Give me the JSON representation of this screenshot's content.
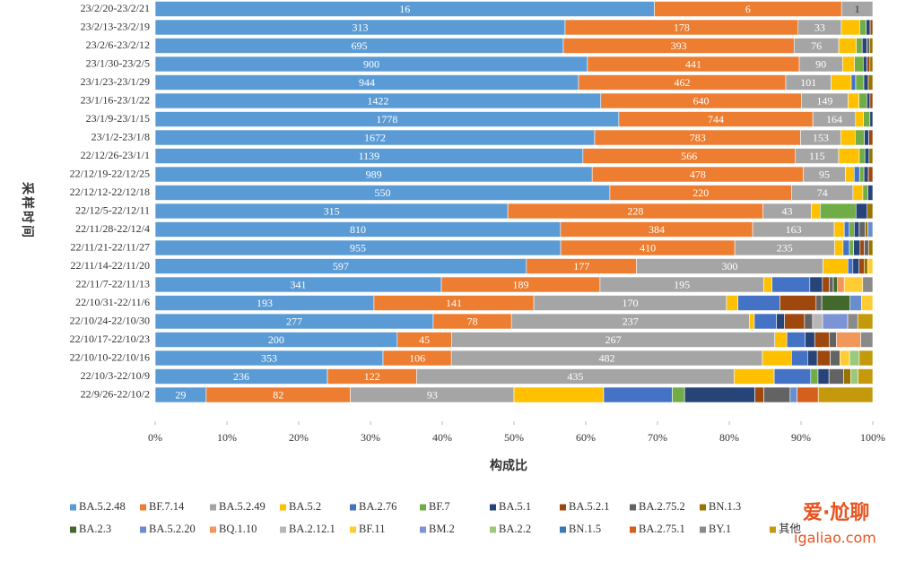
{
  "chart_data": {
    "type": "stacked_percent_barh",
    "xlabel": "构成比",
    "ylabel": "采样时间",
    "categories": [
      "23/2/20-23/2/21",
      "23/2/13-23/2/19",
      "23/2/6-23/2/12",
      "23/1/30-23/2/5",
      "23/1/23-23/1/29",
      "23/1/16-23/1/22",
      "23/1/9-23/1/15",
      "23/1/2-23/1/8",
      "22/12/26-23/1/1",
      "22/12/19-22/12/25",
      "22/12/12-22/12/18",
      "22/12/5-22/12/11",
      "22/11/28-22/12/4",
      "22/11/21-22/11/27",
      "22/11/14-22/11/20",
      "22/11/7-22/11/13",
      "22/10/31-22/11/6",
      "22/10/24-22/10/30",
      "22/10/17-22/10/23",
      "22/10/10-22/10/16",
      "22/10/3-22/10/9",
      "22/9/26-22/10/2"
    ],
    "xlim": [
      0,
      100
    ],
    "xticks": [
      {
        "value": 0,
        "label": "0%"
      },
      {
        "value": 10,
        "label": "10%"
      },
      {
        "value": 20,
        "label": "20%"
      },
      {
        "value": 30,
        "label": "30%"
      },
      {
        "value": 40,
        "label": "40%"
      },
      {
        "value": 50,
        "label": "50%"
      },
      {
        "value": 60,
        "label": "60%"
      },
      {
        "value": 70,
        "label": "70%"
      },
      {
        "value": 80,
        "label": "80%"
      },
      {
        "value": 90,
        "label": "90%"
      },
      {
        "value": 100,
        "label": "100%"
      }
    ],
    "watermark": [
      "爱·尬聊",
      "igaliao.com"
    ],
    "series": [
      {
        "name": "BA.5.2.48",
        "color": "#5b9bd5",
        "show_labels": true,
        "values": [
          16,
          313,
          695,
          900,
          944,
          1422,
          1778,
          1672,
          1139,
          989,
          550,
          315,
          810,
          955,
          597,
          341,
          193,
          277,
          200,
          353,
          236,
          29
        ]
      },
      {
        "name": "BF.7.14",
        "color": "#ed7d31",
        "show_labels": true,
        "values": [
          6,
          178,
          393,
          441,
          462,
          640,
          744,
          783,
          566,
          478,
          220,
          228,
          384,
          410,
          177,
          189,
          141,
          78,
          45,
          106,
          122,
          82
        ]
      },
      {
        "name": "BA.5.2.49",
        "color": "#a5a5a5",
        "show_labels": true,
        "values": [
          1,
          33,
          76,
          90,
          101,
          149,
          164,
          153,
          115,
          95,
          74,
          43,
          163,
          235,
          300,
          195,
          170,
          237,
          267,
          482,
          435,
          93
        ]
      },
      {
        "name": "BA.5.2",
        "color": "#ffc000",
        "values": [
          0,
          14,
          30,
          25,
          45,
          35,
          30,
          55,
          55,
          20,
          12,
          8,
          20,
          20,
          40,
          10,
          10,
          5,
          10,
          45,
          55,
          51
        ]
      },
      {
        "name": "BA.2.76",
        "color": "#4472c4",
        "values": [
          0,
          0,
          0,
          0,
          10,
          0,
          0,
          0,
          0,
          12,
          0,
          0,
          10,
          15,
          8,
          45,
          37,
          22,
          15,
          25,
          50,
          39
        ]
      },
      {
        "name": "BF.7",
        "color": "#70ad47",
        "values": [
          0,
          5,
          10,
          18,
          18,
          25,
          25,
          35,
          15,
          10,
          6,
          32,
          10,
          10,
          0,
          0,
          0,
          0,
          0,
          0,
          10,
          7
        ]
      },
      {
        "name": "BA.5.1",
        "color": "#264478",
        "values": [
          0,
          3,
          8,
          8,
          10,
          10,
          11,
          17,
          11,
          10,
          6,
          10,
          10,
          15,
          10,
          15,
          0,
          8,
          8,
          15,
          15,
          40
        ]
      },
      {
        "name": "BA.5.2.1",
        "color": "#9e480e",
        "values": [
          0,
          2,
          0,
          6,
          0,
          9,
          0,
          15,
          0,
          10,
          0,
          0,
          0,
          10,
          8,
          8,
          32,
          20,
          12,
          20,
          0,
          5
        ]
      },
      {
        "name": "BA.2.75.2",
        "color": "#636363",
        "values": [
          0,
          0,
          5,
          0,
          0,
          0,
          0,
          0,
          0,
          0,
          0,
          0,
          12,
          10,
          0,
          5,
          5,
          8,
          6,
          15,
          20,
          15
        ]
      },
      {
        "name": "BN.1.3",
        "color": "#997300",
        "values": [
          0,
          0,
          5,
          6,
          10,
          0,
          0,
          0,
          10,
          0,
          0,
          5,
          5,
          10,
          6,
          0,
          0,
          0,
          0,
          0,
          10,
          0
        ]
      },
      {
        "name": "BA.2.3",
        "color": "#43682b",
        "values": [
          0,
          0,
          0,
          0,
          0,
          0,
          0,
          0,
          0,
          0,
          0,
          0,
          0,
          0,
          0,
          5,
          25,
          0,
          0,
          0,
          0,
          0
        ]
      },
      {
        "name": "BA.5.2.20",
        "color": "#698ed0",
        "values": [
          0,
          0,
          0,
          0,
          0,
          0,
          0,
          0,
          0,
          0,
          0,
          0,
          10,
          0,
          0,
          0,
          10,
          0,
          0,
          0,
          0,
          4
        ]
      },
      {
        "name": "BQ.1.10",
        "color": "#f1975a",
        "values": [
          0,
          0,
          0,
          0,
          0,
          0,
          0,
          0,
          0,
          0,
          0,
          0,
          0,
          0,
          0,
          8,
          0,
          0,
          20,
          0,
          0,
          0
        ]
      },
      {
        "name": "BA.2.12.1",
        "color": "#b7b7b7",
        "values": [
          0,
          0,
          0,
          0,
          0,
          0,
          0,
          0,
          0,
          0,
          0,
          0,
          0,
          0,
          0,
          0,
          0,
          10,
          0,
          0,
          0,
          0
        ]
      },
      {
        "name": "BF.11",
        "color": "#ffcd33",
        "values": [
          0,
          0,
          0,
          0,
          0,
          0,
          0,
          0,
          0,
          0,
          0,
          0,
          0,
          0,
          8,
          22,
          10,
          0,
          0,
          15,
          0,
          0
        ]
      },
      {
        "name": "BM.2",
        "color": "#7c93d6",
        "values": [
          0,
          0,
          0,
          0,
          0,
          0,
          0,
          0,
          0,
          0,
          0,
          0,
          0,
          0,
          0,
          0,
          0,
          25,
          0,
          0,
          0,
          0
        ]
      },
      {
        "name": "BA.2.2",
        "color": "#9bc97c",
        "values": [
          0,
          0,
          0,
          0,
          0,
          0,
          0,
          0,
          0,
          0,
          0,
          0,
          0,
          0,
          0,
          0,
          0,
          0,
          0,
          15,
          10,
          0
        ]
      },
      {
        "name": "BN.1.5",
        "color": "#3a78b5",
        "values": [
          0,
          0,
          0,
          0,
          0,
          0,
          0,
          0,
          0,
          0,
          0,
          0,
          0,
          0,
          0,
          0,
          0,
          0,
          0,
          0,
          0,
          0
        ]
      },
      {
        "name": "BA.2.75.1",
        "color": "#d65f1c",
        "values": [
          0,
          0,
          0,
          0,
          0,
          0,
          0,
          0,
          0,
          0,
          0,
          0,
          0,
          0,
          0,
          0,
          0,
          0,
          0,
          0,
          0,
          12
        ]
      },
      {
        "name": "BY.1",
        "color": "#8a8a8a",
        "values": [
          0,
          0,
          0,
          0,
          0,
          0,
          0,
          0,
          0,
          0,
          0,
          0,
          0,
          0,
          0,
          12,
          0,
          10,
          10,
          0,
          0,
          0
        ]
      },
      {
        "name": "其他",
        "color": "#c49a0c",
        "values": [
          0,
          0,
          0,
          0,
          0,
          0,
          0,
          0,
          0,
          0,
          0,
          0,
          0,
          0,
          0,
          0,
          0,
          15,
          0,
          21,
          20,
          31
        ]
      }
    ]
  }
}
